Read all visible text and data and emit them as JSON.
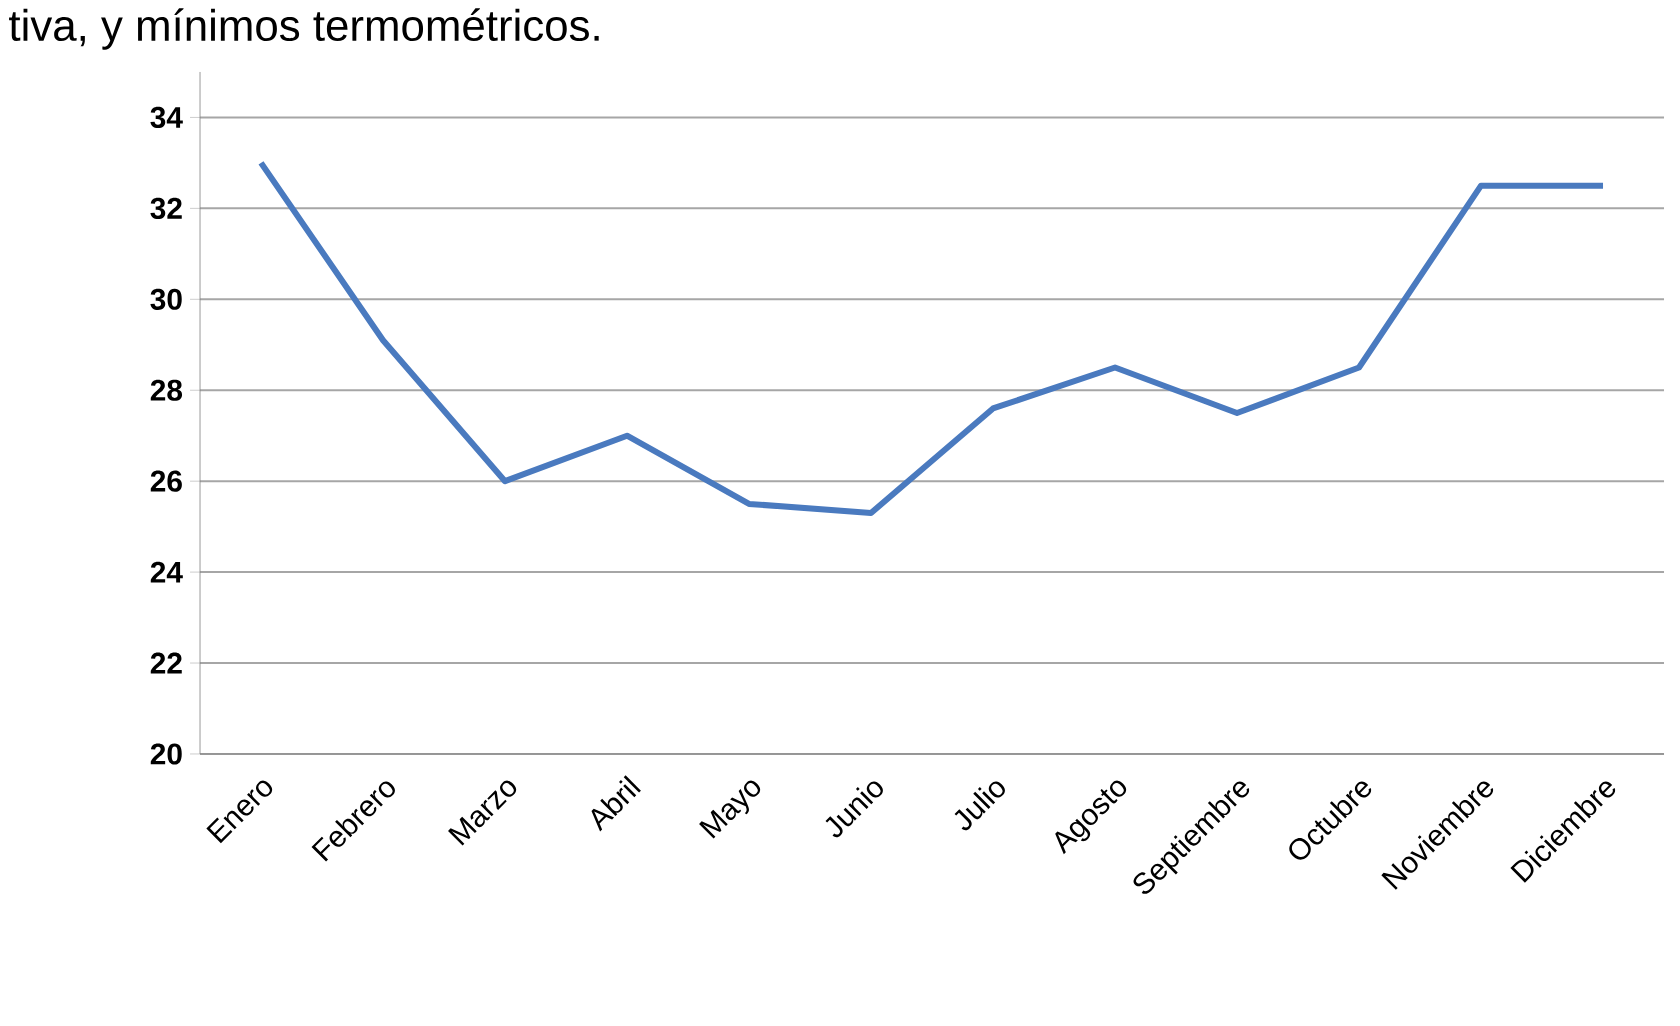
{
  "chart_data": {
    "type": "line",
    "annotations": [
      "tiva, y mínimos termométricos."
    ],
    "categories": [
      "Enero",
      "Febrero",
      "Marzo",
      "Abril",
      "Mayo",
      "Junio",
      "Julio",
      "Agosto",
      "Septiembre",
      "Octubre",
      "Noviembre",
      "Diciembre"
    ],
    "values": [
      33.0,
      29.1,
      26.0,
      27.0,
      25.5,
      25.3,
      27.6,
      28.5,
      27.5,
      28.5,
      32.5,
      32.5
    ],
    "color": "#4a7abf",
    "ylim": [
      20,
      35
    ],
    "yticks": [
      20,
      22,
      24,
      26,
      28,
      30,
      32,
      34
    ],
    "grid": "y",
    "marker": "none",
    "line_style": "solid"
  }
}
